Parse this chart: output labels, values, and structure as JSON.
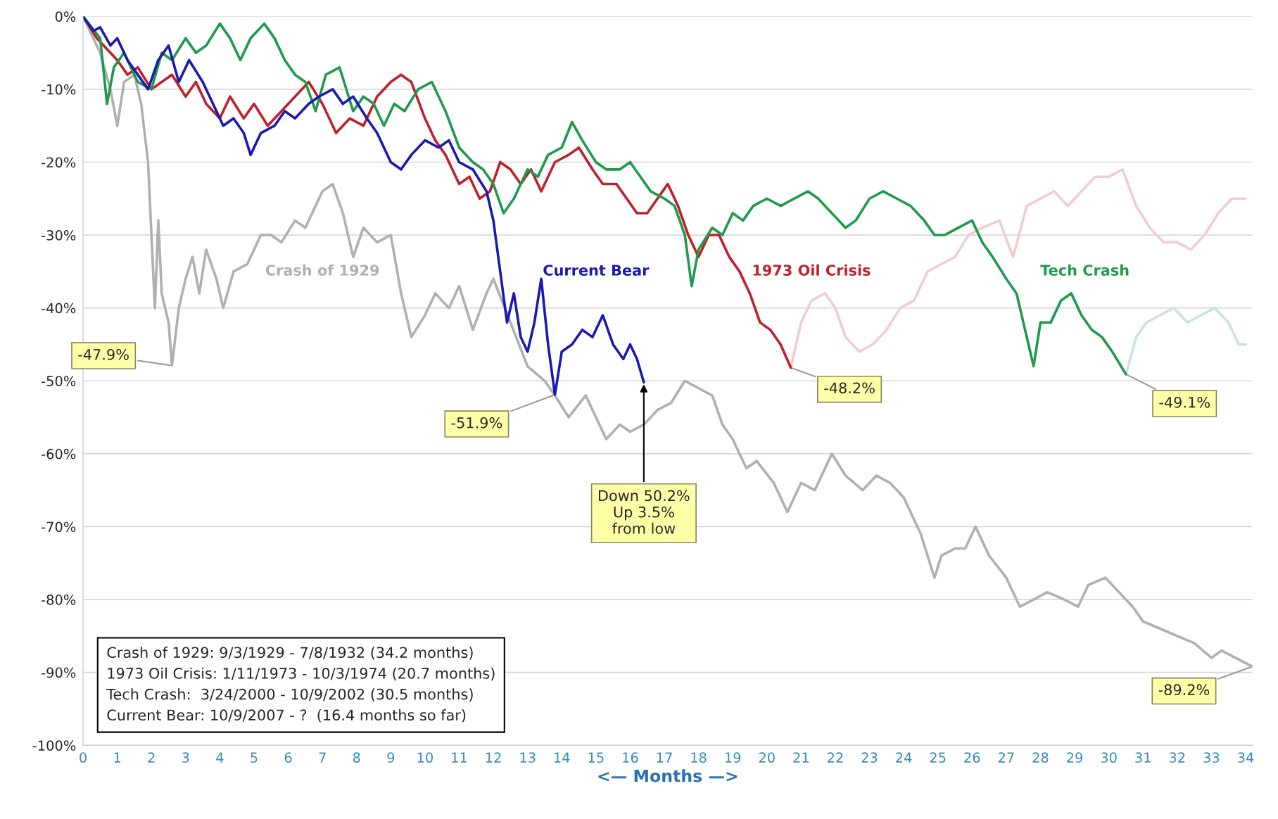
{
  "chart_data": {
    "type": "line",
    "xlabel": "<— Months —>",
    "xlim": [
      0,
      34.2
    ],
    "xticks": [
      0,
      1,
      2,
      3,
      4,
      5,
      6,
      7,
      8,
      9,
      10,
      11,
      12,
      13,
      14,
      15,
      16,
      17,
      18,
      19,
      20,
      21,
      22,
      23,
      24,
      25,
      26,
      27,
      28,
      29,
      30,
      31,
      32,
      33,
      34
    ],
    "ylim": [
      -100,
      0
    ],
    "yticks": [
      {
        "value": 0,
        "label": "0%"
      },
      {
        "value": -10,
        "label": "-10%"
      },
      {
        "value": -20,
        "label": "-20%"
      },
      {
        "value": -30,
        "label": "-30%"
      },
      {
        "value": -40,
        "label": "-40%"
      },
      {
        "value": -50,
        "label": "-50%"
      },
      {
        "value": -60,
        "label": "-60%"
      },
      {
        "value": -70,
        "label": "-70%"
      },
      {
        "value": -80,
        "label": "-80%"
      },
      {
        "value": -90,
        "label": "-90%"
      },
      {
        "value": -100,
        "label": "-100%"
      }
    ],
    "grid": "y",
    "legend": false,
    "series": [
      {
        "name": "Crash of 1929",
        "color": "#b0b0b0",
        "x": [
          0,
          0.5,
          0.8,
          1.0,
          1.2,
          1.5,
          1.7,
          1.9,
          2.0,
          2.1,
          2.2,
          2.3,
          2.5,
          2.6,
          2.8,
          3.0,
          3.2,
          3.4,
          3.6,
          3.9,
          4.1,
          4.4,
          4.8,
          5.2,
          5.5,
          5.8,
          6.2,
          6.5,
          6.8,
          7.0,
          7.3,
          7.6,
          7.9,
          8.2,
          8.6,
          9.0,
          9.3,
          9.6,
          10.0,
          10.3,
          10.7,
          11.0,
          11.4,
          11.8,
          12.0,
          12.5,
          13.0,
          13.5,
          13.8,
          14.2,
          14.7,
          15.0,
          15.3,
          15.7,
          16.0,
          16.4,
          16.8,
          17.2,
          17.6,
          18.0,
          18.4,
          18.7,
          19.0,
          19.4,
          19.7,
          20.2,
          20.6,
          21.0,
          21.4,
          21.9,
          22.3,
          22.8,
          23.2,
          23.6,
          24.0,
          24.5,
          24.9,
          25.1,
          25.5,
          25.8,
          26.1,
          26.5,
          27.0,
          27.4,
          27.8,
          28.2,
          28.7,
          29.1,
          29.4,
          29.9,
          30.3,
          30.7,
          31.0,
          31.5,
          32.0,
          32.5,
          33.0,
          33.3,
          33.7,
          34.2
        ],
        "values": [
          0,
          -5,
          -10,
          -15,
          -9,
          -8,
          -12,
          -20,
          -30,
          -40,
          -28,
          -38,
          -42,
          -47.9,
          -40,
          -36,
          -33,
          -38,
          -32,
          -36,
          -40,
          -35,
          -34,
          -30,
          -30,
          -31,
          -28,
          -29,
          -26,
          -24,
          -23,
          -27,
          -33,
          -29,
          -31,
          -30,
          -38,
          -44,
          -41,
          -38,
          -40,
          -37,
          -43,
          -38,
          -36,
          -42,
          -48,
          -50,
          -52,
          -55,
          -52,
          -55,
          -58,
          -56,
          -57,
          -56,
          -54,
          -53,
          -50,
          -51,
          -52,
          -56,
          -58,
          -62,
          -61,
          -64,
          -68,
          -64,
          -65,
          -60,
          -63,
          -65,
          -63,
          -64,
          -66,
          -71,
          -77,
          -74,
          -73,
          -73,
          -70,
          -74,
          -77,
          -81,
          -80,
          -79,
          -80,
          -81,
          -78,
          -77,
          -79,
          -81,
          -83,
          -84,
          -85,
          -86,
          -88,
          -87,
          -88,
          -89.2
        ]
      },
      {
        "color": "#f2cccc",
        "x": [
          20.7,
          21.0,
          21.3,
          21.7,
          22.0,
          22.3,
          22.7,
          23.1,
          23.5,
          23.9,
          24.3,
          24.7,
          25.1,
          25.5,
          25.9,
          26.3,
          26.8,
          27.2,
          27.6,
          28.0,
          28.4,
          28.8,
          29.2,
          29.6,
          30.0,
          30.4,
          30.8,
          31.2,
          31.6,
          32.0,
          32.4,
          32.8,
          33.2,
          33.6,
          34.0
        ],
        "values": [
          -48.2,
          -42,
          -39,
          -38,
          -40,
          -44,
          -46,
          -45,
          -43,
          -40,
          -39,
          -35,
          -34,
          -33,
          -30,
          -29,
          -28,
          -33,
          -26,
          -25,
          -24,
          -26,
          -24,
          -22,
          -22,
          -21,
          -26,
          -29,
          -31,
          -31,
          -32,
          -30,
          -27,
          -25,
          -25
        ]
      },
      {
        "color": "#c8e6d0",
        "x": [
          30.5,
          30.8,
          31.1,
          31.5,
          31.9,
          32.3,
          32.7,
          33.1,
          33.5,
          33.8,
          34.0
        ],
        "values": [
          -49.1,
          -44,
          -42,
          -41,
          -40,
          -42,
          -41,
          -40,
          -42,
          -45,
          -45
        ]
      },
      {
        "name": "1973 Oil Crisis",
        "color": "#c0202a",
        "x": [
          0,
          0.4,
          0.8,
          1.0,
          1.3,
          1.6,
          2.0,
          2.3,
          2.6,
          3.0,
          3.3,
          3.6,
          4.0,
          4.3,
          4.7,
          5.0,
          5.4,
          5.8,
          6.2,
          6.6,
          7.0,
          7.4,
          7.8,
          8.2,
          8.6,
          9.0,
          9.3,
          9.6,
          10.0,
          10.3,
          10.6,
          11.0,
          11.3,
          11.6,
          11.9,
          12.2,
          12.5,
          12.8,
          13.1,
          13.4,
          13.8,
          14.2,
          14.5,
          14.9,
          15.2,
          15.6,
          15.9,
          16.2,
          16.5,
          16.8,
          17.1,
          17.4,
          17.7,
          18.0,
          18.3,
          18.6,
          18.9,
          19.2,
          19.5,
          19.8,
          20.1,
          20.4,
          20.7
        ],
        "values": [
          0,
          -3,
          -5,
          -6,
          -8,
          -7,
          -10,
          -9,
          -8,
          -11,
          -9,
          -12,
          -14,
          -11,
          -14,
          -12,
          -15,
          -13,
          -11,
          -9,
          -12,
          -16,
          -14,
          -15,
          -11,
          -9,
          -8,
          -9,
          -14,
          -17,
          -19,
          -23,
          -22,
          -25,
          -24,
          -20,
          -21,
          -23,
          -21,
          -24,
          -20,
          -19,
          -18,
          -21,
          -23,
          -23,
          -25,
          -27,
          -27,
          -25,
          -23,
          -26,
          -30,
          -33,
          -30,
          -30,
          -33,
          -35,
          -38,
          -42,
          -43,
          -45,
          -48.2
        ]
      },
      {
        "name": "Tech Crash",
        "color": "#1f9a4a",
        "x": [
          0,
          0.5,
          0.7,
          0.9,
          1.2,
          1.6,
          2.0,
          2.3,
          2.6,
          3.0,
          3.3,
          3.6,
          4.0,
          4.3,
          4.6,
          4.9,
          5.3,
          5.6,
          5.9,
          6.2,
          6.5,
          6.8,
          7.1,
          7.5,
          7.9,
          8.2,
          8.5,
          8.8,
          9.1,
          9.4,
          9.8,
          10.2,
          10.6,
          11.0,
          11.4,
          11.7,
          12.0,
          12.3,
          12.6,
          13.0,
          13.3,
          13.6,
          14.0,
          14.3,
          14.6,
          15.0,
          15.3,
          15.7,
          16.0,
          16.3,
          16.6,
          17.0,
          17.3,
          17.6,
          17.8,
          18.0,
          18.4,
          18.7,
          19.0,
          19.3,
          19.6,
          20.0,
          20.4,
          20.8,
          21.2,
          21.5,
          21.9,
          22.3,
          22.6,
          23.0,
          23.4,
          23.8,
          24.2,
          24.6,
          24.9,
          25.2,
          25.6,
          26.0,
          26.3,
          26.6,
          27.0,
          27.3,
          27.6,
          27.8,
          28.0,
          28.3,
          28.6,
          28.9,
          29.2,
          29.5,
          29.8,
          30.1,
          30.5
        ],
        "values": [
          0,
          -3,
          -12,
          -7,
          -5,
          -9,
          -10,
          -5,
          -6,
          -3,
          -5,
          -4,
          -1,
          -3,
          -6,
          -3,
          -1,
          -3,
          -6,
          -8,
          -9,
          -13,
          -8,
          -7,
          -13,
          -11,
          -12,
          -15,
          -12,
          -13,
          -10,
          -9,
          -13,
          -18,
          -20,
          -21,
          -23,
          -27,
          -25,
          -21,
          -22,
          -19,
          -18,
          -14.5,
          -17,
          -20,
          -21,
          -21,
          -20,
          -22,
          -24,
          -25,
          -26,
          -30,
          -37,
          -32,
          -29,
          -30,
          -27,
          -28,
          -26,
          -25,
          -26,
          -25,
          -24,
          -25,
          -27,
          -29,
          -28,
          -25,
          -24,
          -25,
          -26,
          -28,
          -30,
          -30,
          -29,
          -28,
          -31,
          -33,
          -36,
          -38,
          -44,
          -48,
          -42,
          -42,
          -39,
          -38,
          -41,
          -43,
          -44,
          -46,
          -49.1
        ]
      },
      {
        "name": "Current Bear",
        "color": "#1a1ab0",
        "x": [
          0,
          0.3,
          0.5,
          0.8,
          1.0,
          1.3,
          1.6,
          1.9,
          2.2,
          2.5,
          2.8,
          3.1,
          3.5,
          3.8,
          4.1,
          4.4,
          4.7,
          4.9,
          5.2,
          5.6,
          5.9,
          6.2,
          6.6,
          6.9,
          7.3,
          7.6,
          7.9,
          8.3,
          8.6,
          9.0,
          9.3,
          9.6,
          10.0,
          10.4,
          10.7,
          11.0,
          11.4,
          11.8,
          12.0,
          12.2,
          12.4,
          12.6,
          12.8,
          13.0,
          13.2,
          13.4,
          13.6,
          13.8,
          14.0,
          14.3,
          14.6,
          14.9,
          15.2,
          15.5,
          15.8,
          16.0,
          16.2,
          16.4
        ],
        "values": [
          0,
          -2,
          -1.5,
          -4,
          -3,
          -6,
          -8,
          -10,
          -6,
          -4,
          -9,
          -6,
          -9,
          -12,
          -15,
          -14,
          -16,
          -19,
          -16,
          -15,
          -13,
          -14,
          -12,
          -11,
          -10,
          -12,
          -11,
          -14,
          -16,
          -20,
          -21,
          -19,
          -17,
          -18,
          -17,
          -20,
          -21,
          -24,
          -28,
          -35,
          -42,
          -38,
          -44,
          -46,
          -42,
          -36,
          -45,
          -51.9,
          -46,
          -45,
          -43,
          -44,
          -41,
          -45,
          -47,
          -45,
          -47,
          -50.2
        ]
      }
    ],
    "annotations": [
      {
        "text": "-47.9%",
        "x": 2.6,
        "y": -47.9
      },
      {
        "text": "-51.9%",
        "x": 13.8,
        "y": -51.9
      },
      {
        "text": "-48.2%",
        "x": 20.7,
        "y": -48.2
      },
      {
        "text": "-49.1%",
        "x": 30.5,
        "y": -49.1
      },
      {
        "text": "-89.2%",
        "x": 34.2,
        "y": -89.2
      },
      {
        "text": "Down 50.2%\nUp 3.5%\nfrom low",
        "x": 16.4,
        "y": -50.2
      },
      "Crash of 1929: 9/3/1929 - 7/8/1932 (34.2 months)\n1973 Oil Crisis: 1/11/1973 - 10/3/1974 (20.7 months)\nTech Crash:  3/24/2000 - 10/9/2002 (30.5 months)\nCurrent Bear: 10/9/2007 - ?  (16.4 months so far)"
    ]
  }
}
